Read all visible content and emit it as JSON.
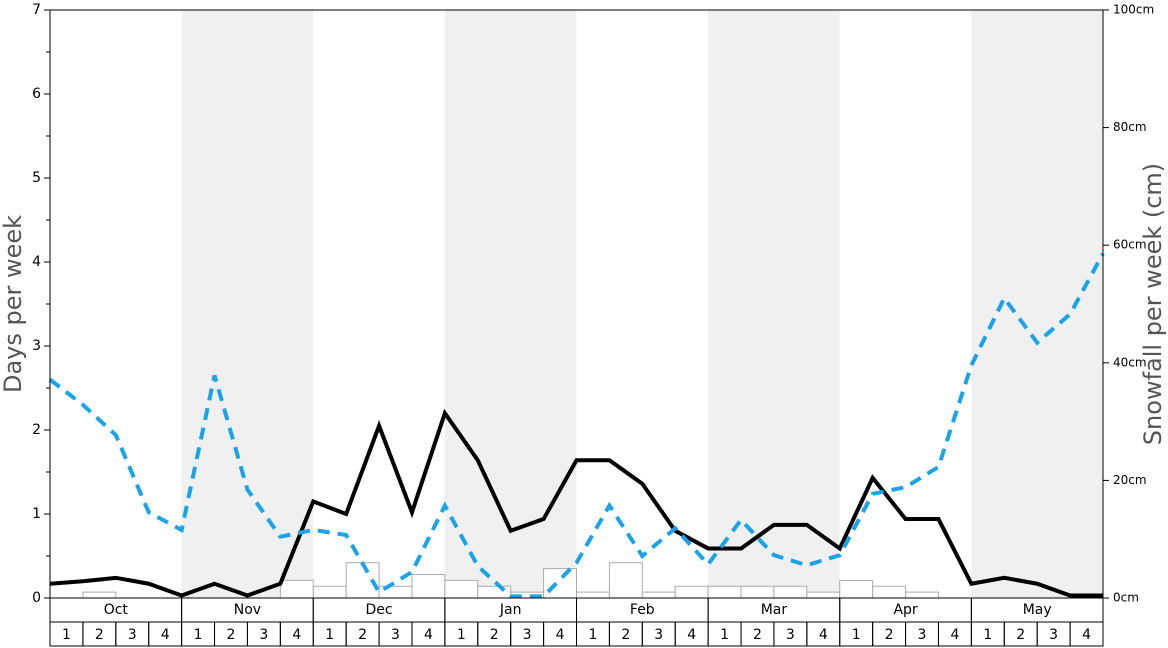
{
  "chart_data": {
    "type": "bar",
    "y_label": "Days per week",
    "y2_label": "Snowfall per week (cm)",
    "months": [
      "Oct",
      "Nov",
      "Dec",
      "Jan",
      "Feb",
      "Mar",
      "Apr",
      "May"
    ],
    "month_shading": [
      "#ffffff",
      "#f0f0f0"
    ],
    "categories": [
      "1",
      "2",
      "3",
      "4",
      "1",
      "2",
      "3",
      "4",
      "1",
      "2",
      "3",
      "4",
      "1",
      "2",
      "3",
      "4",
      "1",
      "2",
      "3",
      "4",
      "1",
      "2",
      "3",
      "4",
      "1",
      "2",
      "3",
      "4",
      "1",
      "2",
      "3",
      "4"
    ],
    "ylim": [
      0,
      7
    ],
    "yticks": [
      0,
      1,
      2,
      3,
      4,
      5,
      6,
      7
    ],
    "yminorticks": [
      0.5,
      1.5,
      2.5,
      3.5,
      4.5,
      5.5,
      6.5
    ],
    "y2lim": [
      0,
      100
    ],
    "y2ticks": [
      {
        "value": 0,
        "label": "0cm"
      },
      {
        "value": 20,
        "label": "20cm"
      },
      {
        "value": 40,
        "label": "40cm"
      },
      {
        "value": 60,
        "label": "60cm"
      },
      {
        "value": 80,
        "label": "80cm"
      },
      {
        "value": 100,
        "label": "100cm"
      }
    ],
    "series": [
      {
        "axis": "y2",
        "color": "#ffffff",
        "stroke": "#aaaaaa",
        "values": [
          0,
          1,
          0,
          0,
          0,
          0,
          0,
          3,
          2,
          6,
          2,
          4,
          3,
          2,
          1,
          5,
          1,
          6,
          1,
          2,
          2,
          2,
          2,
          1,
          3,
          2,
          1,
          0,
          0,
          0,
          0,
          0
        ]
      }
    ],
    "boundary_series": [
      {
        "color": "#000000",
        "dashed": false,
        "values": [
          0.17,
          0.2,
          0.24,
          0.17,
          0.03,
          0.17,
          0.03,
          0.17,
          1.15,
          1.0,
          2.05,
          1.02,
          2.2,
          1.64,
          0.8,
          0.94,
          1.64,
          1.64,
          1.36,
          0.8,
          0.59,
          0.59,
          0.87,
          0.87,
          0.59,
          1.43,
          0.94,
          0.94,
          0.17,
          0.24,
          0.17,
          0.03,
          0.03
        ]
      },
      {
        "color": "#1aa3e8",
        "dashed": true,
        "values": [
          2.6,
          2.3,
          1.94,
          1.02,
          0.81,
          2.65,
          1.29,
          0.73,
          0.81,
          0.75,
          0.07,
          0.31,
          1.1,
          0.38,
          0.02,
          0.02,
          0.42,
          1.1,
          0.5,
          0.83,
          0.4,
          0.93,
          0.51,
          0.39,
          0.51,
          1.24,
          1.32,
          1.56,
          2.77,
          3.57,
          3.04,
          3.38,
          4.1
        ]
      }
    ]
  }
}
